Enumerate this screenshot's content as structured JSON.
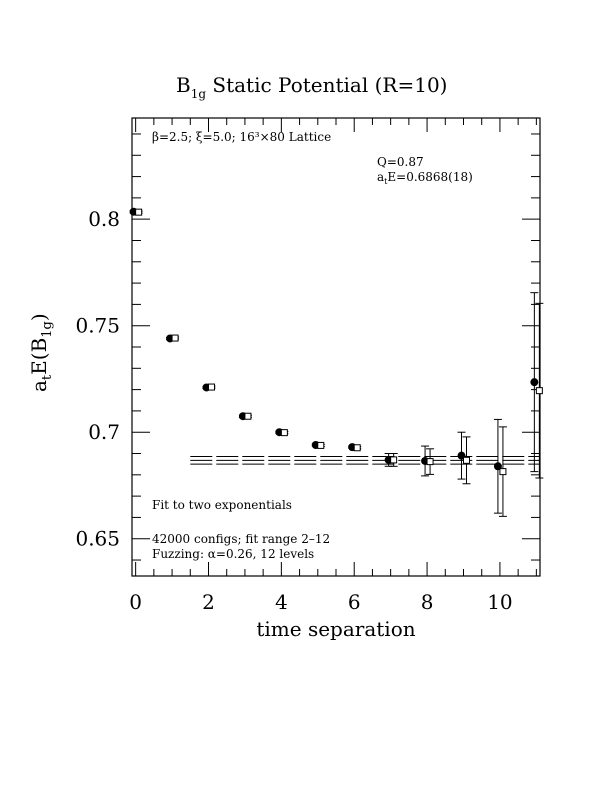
{
  "chart_data": {
    "type": "scatter",
    "title_main": "B",
    "title_sub": "1g",
    "title_rest": " Static Potential (R=10)",
    "xlabel": "time separation",
    "ylabel_main": "a",
    "ylabel_sub1": "t",
    "ylabel_mid": "E(B",
    "ylabel_sub2": "1g",
    "ylabel_end": ")",
    "xlim": [
      -0.1,
      11.1
    ],
    "ylim": [
      0.6325,
      0.8475
    ],
    "x_ticks": [
      0,
      2,
      4,
      6,
      8,
      10
    ],
    "x_tick_labels": [
      "0",
      "2",
      "4",
      "6",
      "8",
      "10"
    ],
    "y_ticks": [
      0.65,
      0.7,
      0.75,
      0.8
    ],
    "y_tick_labels": [
      "0.65",
      "0.7",
      "0.75",
      "0.8"
    ],
    "annotations": {
      "lattice_line": "β=2.5; ξ=5.0; 16³×80 Lattice",
      "q_line": "Q=0.87",
      "energy_main": "a",
      "energy_sub": "t",
      "energy_rest": "E=0.6868(18)",
      "fit_line": "Fit to two exponentials",
      "configs_line": "42000 configs; fit range 2–12",
      "fuzzing_line": "Fuzzing: α=0.26, 12 levels"
    },
    "fit": {
      "value": 0.6868,
      "error": 0.0018,
      "t_min": 1.5,
      "t_max": 11.1
    },
    "series": [
      {
        "marker": "filled-circle",
        "x": [
          0,
          1,
          2,
          3,
          4,
          5,
          6,
          7,
          8,
          9,
          10,
          11
        ],
        "y": [
          0.8035,
          0.744,
          0.721,
          0.7075,
          0.7,
          0.694,
          0.693,
          0.687,
          0.6865,
          0.689,
          0.684,
          0.7235
        ],
        "err": [
          0.0005,
          0.0005,
          0.0005,
          0.0005,
          0.0005,
          0.0005,
          0.0005,
          0.003,
          0.007,
          0.011,
          0.022,
          0.042
        ]
      },
      {
        "marker": "open-square",
        "x": [
          0,
          1,
          2,
          3,
          4,
          5,
          6,
          7,
          8,
          9,
          10,
          11
        ],
        "y": [
          0.8033,
          0.7442,
          0.7212,
          0.7075,
          0.6998,
          0.6938,
          0.6927,
          0.687,
          0.6862,
          0.6868,
          0.6815,
          0.7195
        ],
        "err": [
          0.0005,
          0.0005,
          0.0005,
          0.0005,
          0.0005,
          0.0005,
          0.0005,
          0.003,
          0.006,
          0.011,
          0.021,
          0.041
        ]
      }
    ]
  }
}
